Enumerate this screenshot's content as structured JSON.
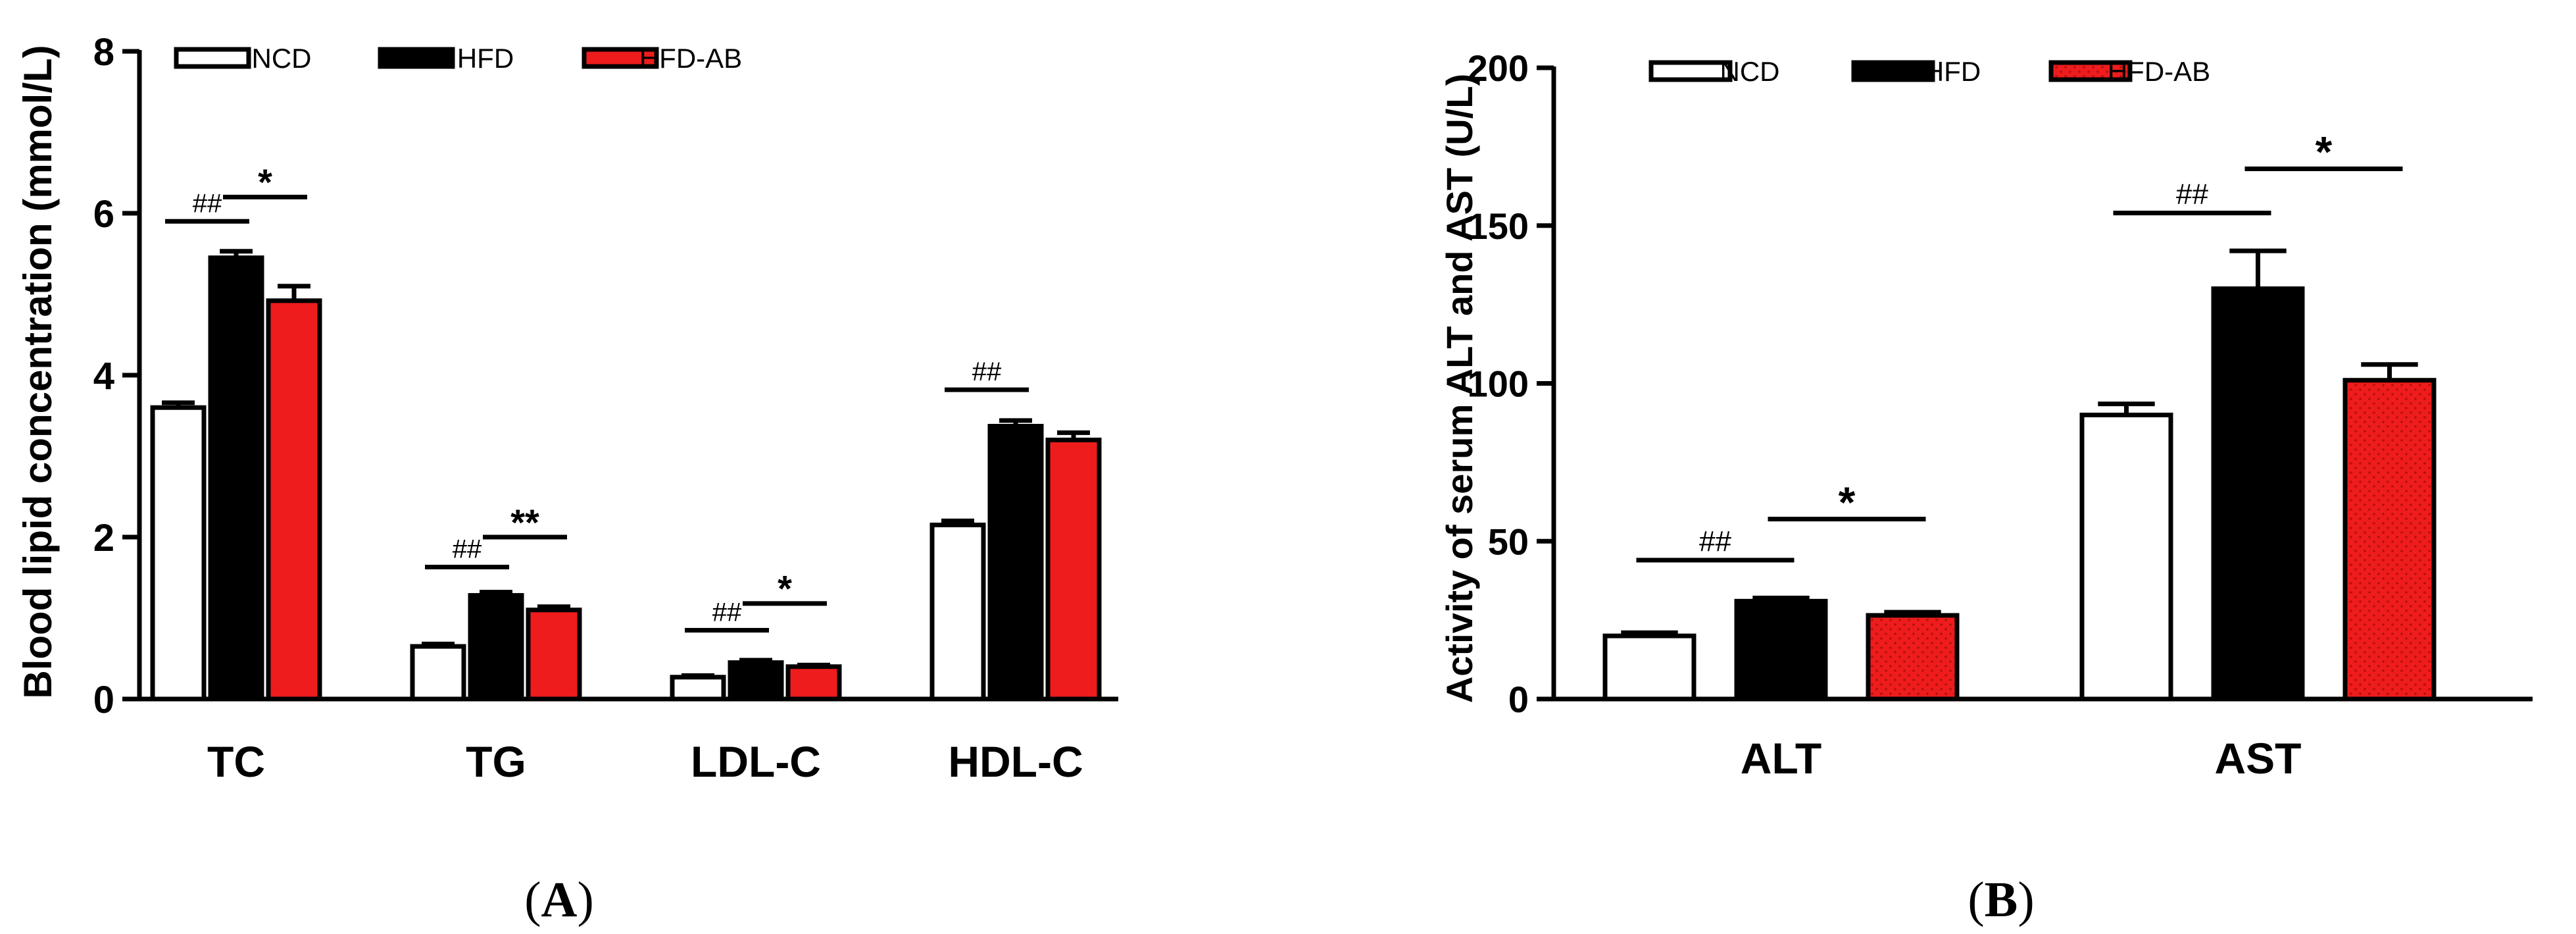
{
  "chart_data": [
    {
      "type": "bar",
      "panel_label": "(A)",
      "panel_letter": "A",
      "ylabel": "Blood lipid concentration (mmol/L)",
      "ylim": [
        0,
        8
      ],
      "yticks": [
        0,
        2,
        4,
        6,
        8
      ],
      "categories": [
        "TC",
        "TG",
        "LDL-C",
        "HDL-C"
      ],
      "legend": {
        "placement": "top",
        "entries": [
          "NCD",
          "HFD",
          "HFD-AB"
        ]
      },
      "colors": {
        "NCD": "#ffffff",
        "HFD": "#000000",
        "HFD-AB": "#ee1c1c"
      },
      "series": [
        {
          "name": "NCD",
          "values": [
            3.6,
            0.65,
            0.27,
            2.15
          ],
          "errors": [
            0.06,
            0.03,
            0.02,
            0.05
          ]
        },
        {
          "name": "HFD",
          "values": [
            5.45,
            1.28,
            0.45,
            3.37
          ],
          "errors": [
            0.08,
            0.04,
            0.03,
            0.07
          ]
        },
        {
          "name": "HFD-AB",
          "values": [
            4.92,
            1.1,
            0.4,
            3.2
          ],
          "errors": [
            0.18,
            0.04,
            0.02,
            0.09
          ]
        }
      ],
      "annotations": [
        {
          "category": 0,
          "between": [
            0,
            1
          ],
          "y": 5.9,
          "text": "##",
          "kind": "hash"
        },
        {
          "category": 0,
          "between": [
            1,
            2
          ],
          "y": 6.2,
          "text": "*",
          "kind": "star"
        },
        {
          "category": 1,
          "between": [
            0,
            1
          ],
          "y": 1.63,
          "text": "##",
          "kind": "hash"
        },
        {
          "category": 1,
          "between": [
            1,
            2
          ],
          "y": 2.0,
          "text": "**",
          "kind": "star"
        },
        {
          "category": 2,
          "between": [
            0,
            1
          ],
          "y": 0.85,
          "text": "##",
          "kind": "hash"
        },
        {
          "category": 2,
          "between": [
            1,
            2
          ],
          "y": 1.18,
          "text": "*",
          "kind": "star"
        },
        {
          "category": 3,
          "between": [
            0,
            1
          ],
          "y": 3.82,
          "text": "##",
          "kind": "hash"
        }
      ]
    },
    {
      "type": "bar",
      "panel_label": "(B)",
      "panel_letter": "B",
      "ylabel": "Activity of serum ALT and AST (U/L)",
      "ylim": [
        0,
        200
      ],
      "yticks": [
        0,
        50,
        100,
        150,
        200
      ],
      "categories": [
        "ALT",
        "AST"
      ],
      "legend": {
        "placement": "top",
        "entries": [
          "NCD",
          "HFD",
          "HFD-AB"
        ]
      },
      "colors": {
        "NCD": "#ffffff",
        "HFD": "#000000",
        "HFD-AB": "#ee1c1c"
      },
      "series": [
        {
          "name": "NCD",
          "values": [
            20,
            90
          ],
          "errors": [
            1,
            3.5
          ]
        },
        {
          "name": "HFD",
          "values": [
            31,
            130
          ],
          "errors": [
            1,
            12
          ]
        },
        {
          "name": "HFD-AB",
          "values": [
            26.5,
            101
          ],
          "errors": [
            1,
            5
          ]
        }
      ],
      "annotations": [
        {
          "category": 0,
          "between": [
            0,
            1
          ],
          "y": 44,
          "text": "##",
          "kind": "hash"
        },
        {
          "category": 0,
          "between": [
            1,
            2
          ],
          "y": 57,
          "text": "*",
          "kind": "star"
        },
        {
          "category": 1,
          "between": [
            0,
            1
          ],
          "y": 154,
          "text": "##",
          "kind": "hash"
        },
        {
          "category": 1,
          "between": [
            1,
            2
          ],
          "y": 168,
          "text": "*",
          "kind": "star"
        }
      ]
    }
  ]
}
